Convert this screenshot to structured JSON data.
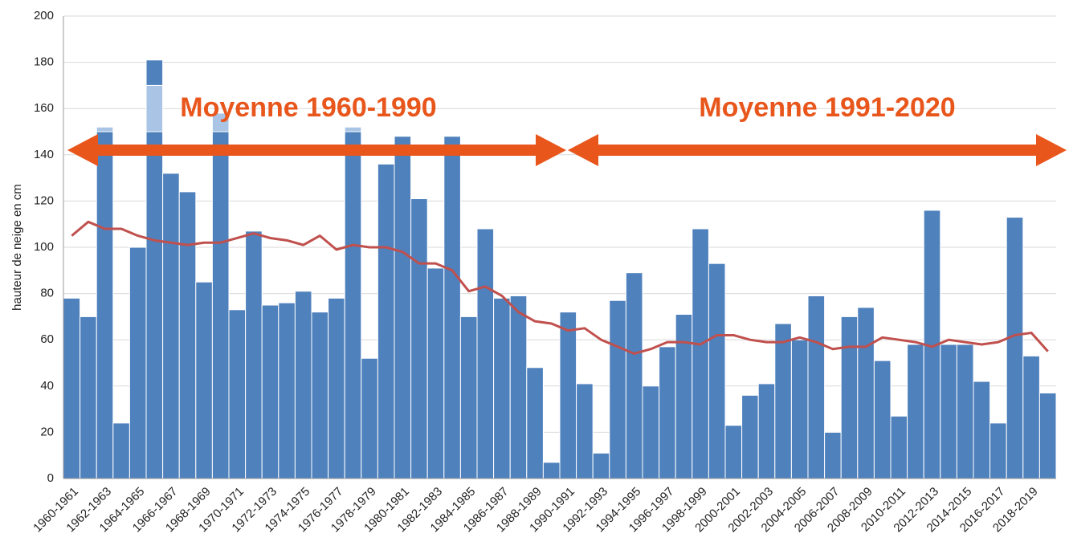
{
  "chart_data": {
    "type": "bar",
    "y_label": "hauteur de neige en cm",
    "annotations": [
      "Moyenne 1960-1990",
      "Moyenne 1991-2020"
    ],
    "categories": [
      "1960-1961",
      null,
      "1962-1963",
      null,
      "1964-1965",
      null,
      "1966-1967",
      null,
      "1968-1969",
      null,
      "1970-1971",
      null,
      "1972-1973",
      null,
      "1974-1975",
      null,
      "1976-1977",
      null,
      "1978-1979",
      null,
      "1980-1981",
      null,
      "1982-1983",
      null,
      "1984-1985",
      null,
      "1986-1987",
      null,
      "1988-1989",
      null,
      "1990-1991",
      null,
      "1992-1993",
      null,
      "1994-1995",
      null,
      "1996-1997",
      null,
      "1998-1999",
      null,
      "2000-2001",
      null,
      "2002-2003",
      null,
      "2004-2005",
      null,
      "2006-2007",
      null,
      "2008-2009",
      null,
      "2010-2011",
      null,
      "2012-2013",
      null,
      "2014-2015",
      null,
      "2016-2017",
      null,
      "2018-2019",
      null
    ],
    "series": [
      {
        "color": "#4f81bd",
        "values": [
          78,
          70,
          150,
          24,
          100,
          150,
          132,
          124,
          85,
          150,
          73,
          107,
          75,
          76,
          81,
          72,
          78,
          150,
          52,
          136,
          148,
          121,
          91,
          148,
          70,
          108,
          78,
          79,
          48,
          7,
          72,
          41,
          11,
          77,
          89,
          40,
          57,
          71,
          108,
          93,
          23,
          36,
          41,
          67,
          60,
          79,
          20,
          70,
          74,
          51,
          27,
          58,
          116,
          58,
          58,
          42,
          24,
          113,
          53,
          37
        ]
      },
      {
        "color": "#a9c4e4",
        "values": [
          null,
          null,
          2,
          null,
          null,
          20,
          null,
          null,
          null,
          8,
          null,
          null,
          null,
          null,
          null,
          null,
          null,
          2,
          null,
          null,
          null,
          null,
          null,
          null,
          null,
          null,
          null,
          null,
          null,
          null,
          null,
          null,
          null,
          null,
          null,
          null,
          null,
          null,
          null,
          null,
          null,
          null,
          null,
          null,
          null,
          null,
          null,
          null,
          null,
          null,
          null,
          null,
          null,
          null,
          null,
          null,
          null,
          null,
          null,
          null
        ]
      },
      {
        "color": "#4f81bd",
        "values": [
          null,
          null,
          null,
          null,
          null,
          11,
          null,
          null,
          null,
          null,
          null,
          null,
          null,
          null,
          null,
          null,
          null,
          null,
          null,
          null,
          null,
          null,
          null,
          null,
          null,
          null,
          null,
          null,
          null,
          null,
          null,
          null,
          null,
          null,
          null,
          null,
          null,
          null,
          null,
          null,
          null,
          null,
          null,
          null,
          null,
          null,
          null,
          null,
          null,
          null,
          null,
          null,
          null,
          null,
          null,
          null,
          null,
          null,
          null,
          null
        ]
      }
    ],
    "line": {
      "type": "line",
      "color": "#c0504d",
      "values": [
        105,
        111,
        108,
        108,
        105,
        103,
        102,
        101,
        102,
        102,
        104,
        106,
        104,
        103,
        101,
        105,
        99,
        101,
        100,
        100,
        98,
        93,
        93,
        90,
        81,
        83,
        79,
        72,
        68,
        67,
        64,
        65,
        60,
        57,
        54,
        56,
        59,
        59,
        58,
        62,
        62,
        60,
        59,
        59,
        61,
        59,
        56,
        57,
        57,
        61,
        60,
        59,
        57,
        60,
        59,
        58,
        59,
        62,
        63,
        55
      ]
    },
    "ylim": [
      0,
      200
    ],
    "yticks": [
      0,
      20,
      40,
      60,
      80,
      100,
      120,
      140,
      160,
      180,
      200
    ],
    "grid": true
  }
}
